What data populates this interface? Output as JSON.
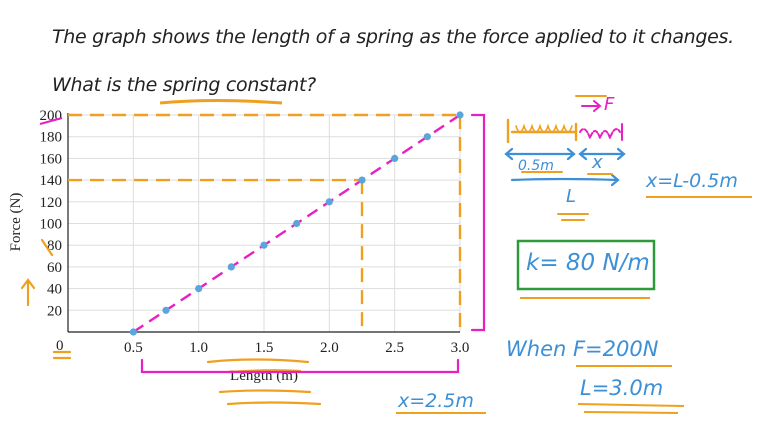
{
  "header": {
    "question": "The graph shows the length of a spring as the force applied to it changes.",
    "subquestion": "What is the spring constant?"
  },
  "chart_data": {
    "type": "scatter",
    "xlabel": "Length (m)",
    "ylabel": "Force (N)",
    "xlim": [
      0,
      3.0
    ],
    "ylim": [
      0,
      200
    ],
    "x_ticks": [
      "0.5",
      "1.0",
      "1.5",
      "2.0",
      "2.5",
      "3.0"
    ],
    "y_ticks": [
      "20",
      "40",
      "60",
      "80",
      "100",
      "120",
      "140",
      "160",
      "180",
      "200"
    ],
    "origin_label": "0",
    "grid": true,
    "x": [
      0.5,
      0.75,
      1.0,
      1.25,
      1.5,
      1.75,
      2.0,
      2.25,
      2.5,
      2.75,
      3.0
    ],
    "y": [
      0,
      20,
      40,
      60,
      80,
      100,
      120,
      140,
      160,
      180,
      200
    ],
    "fit_line": {
      "x": [
        0.5,
        3.0
      ],
      "y": [
        0,
        200
      ]
    },
    "colors": {
      "points": "#5aa6dc",
      "fit": "#e81fc3",
      "guides": "#f0a020",
      "axes": "#222222"
    }
  },
  "annotations": {
    "diagram_force": "F",
    "diagram_natural_length": "0.5m",
    "diagram_extension": "x",
    "diagram_total_length": "L",
    "extension_formula": "x=L-0.5m",
    "result": "k= 80 N/m",
    "when_line": "When F=200N",
    "length_value": "L=3.0m",
    "extension_value": "x=2.5m",
    "colors": {
      "blue": "#3d8fd6",
      "orange": "#f0a020",
      "green": "#2e9a3a",
      "magenta": "#e81fc3"
    }
  }
}
